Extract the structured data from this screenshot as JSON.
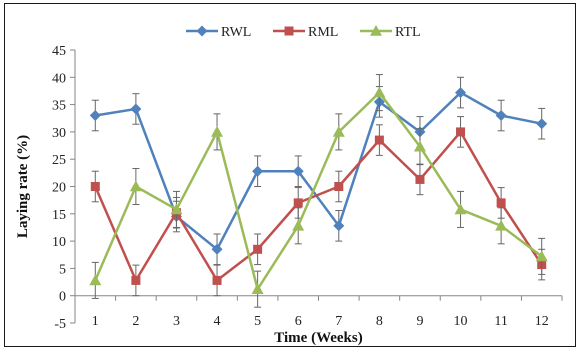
{
  "chart_data": {
    "type": "line",
    "title": "",
    "xlabel": "Time (Weeks)",
    "ylabel": "Laying rate (%)",
    "categories": [
      "1",
      "2",
      "3",
      "4",
      "5",
      "6",
      "7",
      "8",
      "9",
      "10",
      "11",
      "12"
    ],
    "yticks": [
      "-5",
      "0",
      "5",
      "10",
      "15",
      "20",
      "25",
      "30",
      "35",
      "40",
      "45"
    ],
    "ylim": [
      -5,
      45
    ],
    "grid": false,
    "legend_position": "top",
    "series": [
      {
        "name": "RWL",
        "color": "#4f81bd",
        "marker": "diamond",
        "values": [
          33,
          34.2,
          14.5,
          8.5,
          22.8,
          22.8,
          12.8,
          35.5,
          30,
          37.2,
          33,
          31.5
        ],
        "errors": [
          2.8,
          2.8,
          2.8,
          2.8,
          2.8,
          2.8,
          2.8,
          2.8,
          2.8,
          2.8,
          2.8,
          2.8
        ]
      },
      {
        "name": "RML",
        "color": "#c0504d",
        "marker": "square",
        "values": [
          20,
          2.8,
          15.2,
          2.8,
          8.5,
          17,
          20,
          28.5,
          21.3,
          30,
          17,
          5.7
        ],
        "errors": [
          2.8,
          2.8,
          2.8,
          2.8,
          2.8,
          2.8,
          2.8,
          2.8,
          2.8,
          2.8,
          2.8,
          2.8
        ]
      },
      {
        "name": "RTL",
        "color": "#9bbb59",
        "marker": "triangle",
        "values": [
          2.8,
          20,
          15.8,
          30,
          1.2,
          12.8,
          30,
          37.2,
          27.3,
          15.8,
          12.8,
          7.2
        ],
        "errors": [
          3.3,
          3.3,
          3.3,
          3.3,
          3.3,
          3.3,
          3.3,
          3.3,
          3.3,
          3.3,
          3.3,
          3.3
        ]
      }
    ]
  }
}
